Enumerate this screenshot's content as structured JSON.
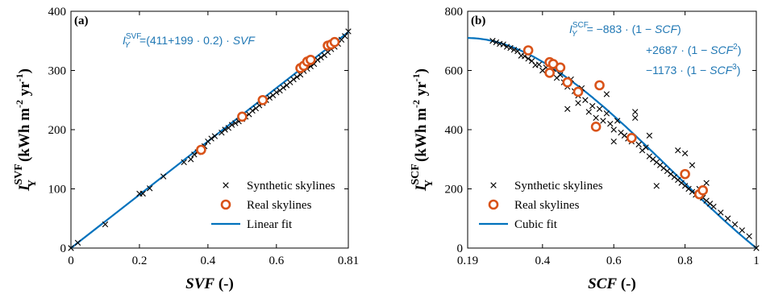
{
  "colors": {
    "fit": "#0072bd",
    "real": "#d95319",
    "synthetic": "#000000",
    "eq": "#1f77b4"
  },
  "chart_data": [
    {
      "type": "scatter",
      "panel_label": "(a)",
      "xlabel": "SVF (-)",
      "ylabel_main": "I",
      "ylabel_sup": "SVF",
      "ylabel_sub": "Y",
      "ylabel_units": "(kWh m-2 yr-1)",
      "xlim": [
        0,
        0.81
      ],
      "ylim": [
        0,
        400
      ],
      "xticks": [
        0,
        0.2,
        0.4,
        0.6,
        0.81
      ],
      "xtick_labels": [
        "0",
        "0.2",
        "0.4",
        "0.6",
        "0.81"
      ],
      "yticks": [
        0,
        100,
        200,
        300,
        400
      ],
      "ytick_labels": [
        "0",
        "100",
        "200",
        "300",
        "400"
      ],
      "legend_position": "bottom-right",
      "equation": "I_Y^SVF=(411+199 · 0.2) · SVF",
      "series": [
        {
          "name": "Synthetic skylines",
          "marker": "x",
          "points": [
            [
              0,
              0
            ],
            [
              0.02,
              9
            ],
            [
              0.1,
              40
            ],
            [
              0.2,
              92
            ],
            [
              0.21,
              92
            ],
            [
              0.23,
              101
            ],
            [
              0.27,
              121
            ],
            [
              0.33,
              145
            ],
            [
              0.35,
              150
            ],
            [
              0.36,
              158
            ],
            [
              0.37,
              162
            ],
            [
              0.39,
              172
            ],
            [
              0.4,
              180
            ],
            [
              0.41,
              185
            ],
            [
              0.42,
              189
            ],
            [
              0.44,
              195
            ],
            [
              0.45,
              200
            ],
            [
              0.46,
              203
            ],
            [
              0.47,
              208
            ],
            [
              0.48,
              211
            ],
            [
              0.49,
              214
            ],
            [
              0.5,
              218
            ],
            [
              0.51,
              222
            ],
            [
              0.52,
              226
            ],
            [
              0.53,
              232
            ],
            [
              0.54,
              236
            ],
            [
              0.55,
              241
            ],
            [
              0.56,
              245
            ],
            [
              0.57,
              250
            ],
            [
              0.58,
              254
            ],
            [
              0.59,
              258
            ],
            [
              0.6,
              263
            ],
            [
              0.61,
              266
            ],
            [
              0.62,
              271
            ],
            [
              0.63,
              275
            ],
            [
              0.64,
              280
            ],
            [
              0.65,
              285
            ],
            [
              0.66,
              289
            ],
            [
              0.67,
              293
            ],
            [
              0.68,
              299
            ],
            [
              0.69,
              303
            ],
            [
              0.7,
              307
            ],
            [
              0.71,
              311
            ],
            [
              0.72,
              318
            ],
            [
              0.73,
              322
            ],
            [
              0.74,
              326
            ],
            [
              0.75,
              331
            ],
            [
              0.76,
              336
            ],
            [
              0.77,
              340
            ],
            [
              0.78,
              345
            ],
            [
              0.79,
              352
            ],
            [
              0.8,
              358
            ],
            [
              0.81,
              366
            ]
          ]
        },
        {
          "name": "Real skylines",
          "marker": "o",
          "points": [
            [
              0.38,
              166
            ],
            [
              0.5,
              222
            ],
            [
              0.56,
              250
            ],
            [
              0.67,
              304
            ],
            [
              0.68,
              308
            ],
            [
              0.69,
              315
            ],
            [
              0.7,
              318
            ],
            [
              0.75,
              342
            ],
            [
              0.76,
              344
            ],
            [
              0.77,
              348
            ]
          ]
        },
        {
          "name": "Linear fit",
          "marker": "line",
          "points": [
            [
              0,
              0
            ],
            [
              0.81,
              365
            ]
          ]
        }
      ]
    },
    {
      "type": "scatter",
      "panel_label": "(b)",
      "xlabel": "SCF (-)",
      "ylabel_main": "I",
      "ylabel_sup": "SCF",
      "ylabel_sub": "Y",
      "ylabel_units": "(kWh m-2 yr-1)",
      "xlim": [
        0.19,
        1
      ],
      "ylim": [
        0,
        800
      ],
      "xticks": [
        0.19,
        0.4,
        0.6,
        0.8,
        1
      ],
      "xtick_labels": [
        "0.19",
        "0.4",
        "0.6",
        "0.8",
        "1"
      ],
      "yticks": [
        0,
        200,
        400,
        600,
        800
      ],
      "ytick_labels": [
        "0",
        "200",
        "400",
        "600",
        "800"
      ],
      "legend_position": "bottom-left",
      "equation_lines": [
        "I_Y^SCF =     −883 · (1 − SCF)",
        "+2687 · (1 − SCF²)",
        "−1173 · (1 − SCF³)"
      ],
      "series": [
        {
          "name": "Synthetic skylines",
          "marker": "x",
          "points": [
            [
              0.26,
              700
            ],
            [
              0.27,
              695
            ],
            [
              0.28,
              690
            ],
            [
              0.29,
              688
            ],
            [
              0.3,
              680
            ],
            [
              0.31,
              676
            ],
            [
              0.32,
              670
            ],
            [
              0.33,
              665
            ],
            [
              0.34,
              650
            ],
            [
              0.35,
              648
            ],
            [
              0.36,
              640
            ],
            [
              0.37,
              632
            ],
            [
              0.38,
              618
            ],
            [
              0.39,
              620
            ],
            [
              0.4,
              600
            ],
            [
              0.41,
              610
            ],
            [
              0.42,
              590
            ],
            [
              0.43,
              605
            ],
            [
              0.44,
              575
            ],
            [
              0.45,
              585
            ],
            [
              0.46,
              560
            ],
            [
              0.47,
              545
            ],
            [
              0.48,
              570
            ],
            [
              0.49,
              530
            ],
            [
              0.5,
              515
            ],
            [
              0.51,
              540
            ],
            [
              0.52,
              500
            ],
            [
              0.53,
              460
            ],
            [
              0.54,
              480
            ],
            [
              0.55,
              440
            ],
            [
              0.56,
              470
            ],
            [
              0.57,
              430
            ],
            [
              0.58,
              455
            ],
            [
              0.59,
              420
            ],
            [
              0.6,
              400
            ],
            [
              0.61,
              430
            ],
            [
              0.62,
              390
            ],
            [
              0.63,
              380
            ],
            [
              0.64,
              370
            ],
            [
              0.65,
              360
            ],
            [
              0.66,
              440
            ],
            [
              0.67,
              350
            ],
            [
              0.68,
              330
            ],
            [
              0.69,
              340
            ],
            [
              0.7,
              310
            ],
            [
              0.71,
              300
            ],
            [
              0.72,
              290
            ],
            [
              0.73,
              280
            ],
            [
              0.74,
              270
            ],
            [
              0.75,
              260
            ],
            [
              0.76,
              250
            ],
            [
              0.77,
              240
            ],
            [
              0.78,
              230
            ],
            [
              0.79,
              220
            ],
            [
              0.8,
              210
            ],
            [
              0.81,
              200
            ],
            [
              0.82,
              190
            ],
            [
              0.83,
              180
            ],
            [
              0.84,
              200
            ],
            [
              0.85,
              170
            ],
            [
              0.86,
              160
            ],
            [
              0.87,
              150
            ],
            [
              0.88,
              140
            ],
            [
              0.9,
              120
            ],
            [
              0.92,
              100
            ],
            [
              0.94,
              80
            ],
            [
              0.96,
              60
            ],
            [
              0.98,
              40
            ],
            [
              1,
              0
            ],
            [
              0.72,
              210
            ],
            [
              0.78,
              330
            ],
            [
              0.8,
              320
            ],
            [
              0.66,
              460
            ],
            [
              0.58,
              520
            ],
            [
              0.5,
              490
            ],
            [
              0.47,
              470
            ],
            [
              0.6,
              360
            ],
            [
              0.7,
              380
            ],
            [
              0.82,
              280
            ],
            [
              0.86,
              220
            ]
          ]
        },
        {
          "name": "Real skylines",
          "marker": "o",
          "points": [
            [
              0.36,
              668
            ],
            [
              0.42,
              628
            ],
            [
              0.42,
              592
            ],
            [
              0.43,
              622
            ],
            [
              0.45,
              610
            ],
            [
              0.47,
              560
            ],
            [
              0.5,
              528
            ],
            [
              0.55,
              410
            ],
            [
              0.56,
              550
            ],
            [
              0.65,
              372
            ],
            [
              0.8,
              250
            ],
            [
              0.84,
              182
            ],
            [
              0.85,
              195
            ]
          ]
        },
        {
          "name": "Cubic fit",
          "marker": "line",
          "curve": "cubic",
          "coeffs": [
            -883,
            2687,
            -1173
          ]
        }
      ]
    }
  ]
}
